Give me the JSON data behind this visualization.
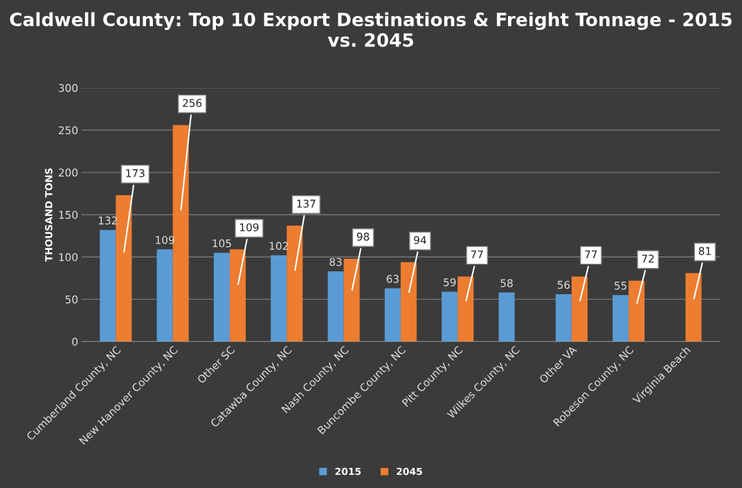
{
  "chart_data": {
    "type": "bar",
    "title": "Caldwell County: Top 10 Export Destinations & Freight Tonnage - 2015 vs. 2045",
    "ylabel": "THOUSAND TONS",
    "categories": [
      "Cumberland County, NC",
      "New Hanover County, NC",
      "Other SC",
      "Catawba County, NC",
      "Nash County, NC",
      "Buncombe County, NC",
      "Pitt County, NC",
      "Wilkes County, NC",
      "Other VA",
      "Robeson County, NC",
      "Virginia Beach"
    ],
    "series": [
      {
        "name": "2015",
        "color": "#5b9bd5",
        "values": [
          132,
          109,
          105,
          102,
          83,
          63,
          59,
          58,
          56,
          55,
          null
        ]
      },
      {
        "name": "2045",
        "color": "#ed7d31",
        "values": [
          173,
          256,
          109,
          137,
          98,
          94,
          77,
          null,
          77,
          72,
          81
        ]
      }
    ],
    "ylim": [
      0,
      300
    ],
    "yticks": [
      0,
      50,
      100,
      150,
      200,
      250,
      300
    ],
    "grid": "y",
    "legend": "bottom",
    "data_labels": true
  }
}
